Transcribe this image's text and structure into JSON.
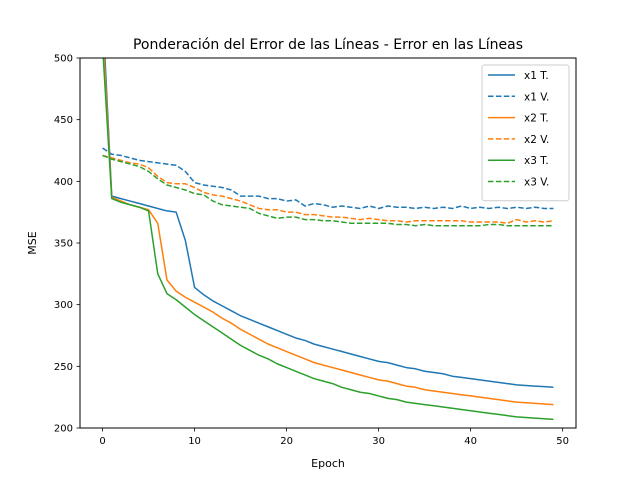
{
  "chart_data": {
    "type": "line",
    "title": "Ponderación del Error de las Líneas - Error en las Líneas",
    "xlabel": "Epoch",
    "ylabel": "MSE",
    "xlim": [
      -2.45,
      51.45
    ],
    "ylim": [
      200,
      500
    ],
    "xticks": [
      0,
      10,
      20,
      30,
      40,
      50
    ],
    "yticks": [
      200,
      250,
      300,
      350,
      400,
      450,
      500
    ],
    "grid": false,
    "legend_position": "top-right",
    "series": [
      {
        "name": "x1 T.",
        "color": "#1f77b4",
        "dash": "solid",
        "x": [
          0,
          1,
          2,
          3,
          4,
          5,
          6,
          7,
          8,
          9,
          10,
          11,
          12,
          13,
          14,
          15,
          16,
          17,
          18,
          19,
          20,
          21,
          22,
          23,
          24,
          25,
          26,
          27,
          28,
          29,
          30,
          31,
          32,
          33,
          34,
          35,
          36,
          37,
          38,
          39,
          40,
          41,
          42,
          43,
          44,
          45,
          46,
          47,
          48,
          49
        ],
        "y": [
          540,
          388,
          386,
          384,
          382,
          380,
          378,
          376,
          375,
          352,
          314,
          308,
          303,
          299,
          295,
          291,
          288,
          285,
          282,
          279,
          276,
          273,
          271,
          268,
          266,
          264,
          262,
          260,
          258,
          256,
          254,
          253,
          251,
          249,
          248,
          246,
          245,
          244,
          242,
          241,
          240,
          239,
          238,
          237,
          236,
          235,
          234.5,
          234,
          233.5,
          233
        ]
      },
      {
        "name": "x1 V.",
        "color": "#1f77b4",
        "dash": "dashed",
        "x": [
          0,
          1,
          2,
          3,
          4,
          5,
          6,
          7,
          8,
          9,
          10,
          11,
          12,
          13,
          14,
          15,
          16,
          17,
          18,
          19,
          20,
          21,
          22,
          23,
          24,
          25,
          26,
          27,
          28,
          29,
          30,
          31,
          32,
          33,
          34,
          35,
          36,
          37,
          38,
          39,
          40,
          41,
          42,
          43,
          44,
          45,
          46,
          47,
          48,
          49
        ],
        "y": [
          427,
          422,
          421,
          419,
          417,
          416,
          415,
          414,
          413,
          408,
          399,
          397,
          396,
          395,
          393,
          388,
          388,
          388,
          386,
          386,
          384,
          385,
          380,
          382,
          381,
          379,
          380,
          379,
          378,
          380,
          378,
          380,
          379,
          379,
          378,
          379,
          378,
          379,
          378,
          380,
          378,
          379,
          378,
          379,
          378,
          379,
          378,
          379,
          378,
          378
        ]
      },
      {
        "name": "x2 T.",
        "color": "#ff7f0e",
        "dash": "solid",
        "x": [
          0,
          1,
          2,
          3,
          4,
          5,
          6,
          7,
          8,
          9,
          10,
          11,
          12,
          13,
          14,
          15,
          16,
          17,
          18,
          19,
          20,
          21,
          22,
          23,
          24,
          25,
          26,
          27,
          28,
          29,
          30,
          31,
          32,
          33,
          34,
          35,
          36,
          37,
          38,
          39,
          40,
          41,
          42,
          43,
          44,
          45,
          46,
          47,
          48,
          49
        ],
        "y": [
          525,
          387,
          384,
          381,
          379,
          377,
          366,
          320,
          311,
          306,
          302,
          298,
          294,
          289,
          285,
          280,
          276,
          272,
          268,
          265,
          262,
          259,
          256,
          253,
          251,
          249,
          247,
          245,
          243,
          241,
          239,
          238,
          236,
          234,
          233,
          231,
          230,
          229,
          228,
          227,
          226,
          225,
          224,
          223,
          222,
          221,
          220.5,
          220,
          219.5,
          219
        ]
      },
      {
        "name": "x2 V.",
        "color": "#ff7f0e",
        "dash": "dashed",
        "x": [
          0,
          1,
          2,
          3,
          4,
          5,
          6,
          7,
          8,
          9,
          10,
          11,
          12,
          13,
          14,
          15,
          16,
          17,
          18,
          19,
          20,
          21,
          22,
          23,
          24,
          25,
          26,
          27,
          28,
          29,
          30,
          31,
          32,
          33,
          34,
          35,
          36,
          37,
          38,
          39,
          40,
          41,
          42,
          43,
          44,
          45,
          46,
          47,
          48,
          49
        ],
        "y": [
          421,
          419,
          417,
          415,
          414,
          411,
          404,
          399,
          398,
          398,
          395,
          391,
          389,
          388,
          386,
          384,
          381,
          378,
          377,
          377,
          375,
          375,
          373,
          373,
          372,
          371,
          371,
          370,
          369,
          370,
          369,
          368,
          368,
          367,
          368,
          368,
          368,
          368,
          368,
          368,
          367,
          367,
          367,
          367,
          366,
          369,
          367,
          368,
          367,
          368
        ]
      },
      {
        "name": "x3 T.",
        "color": "#2ca02c",
        "dash": "solid",
        "x": [
          0,
          1,
          2,
          3,
          4,
          5,
          6,
          7,
          8,
          9,
          10,
          11,
          12,
          13,
          14,
          15,
          16,
          17,
          18,
          19,
          20,
          21,
          22,
          23,
          24,
          25,
          26,
          27,
          28,
          29,
          30,
          31,
          32,
          33,
          34,
          35,
          36,
          37,
          38,
          39,
          40,
          41,
          42,
          43,
          44,
          45,
          46,
          47,
          48,
          49
        ],
        "y": [
          510,
          386,
          383,
          381,
          379,
          376,
          325,
          309,
          304,
          298,
          292,
          287,
          282,
          277,
          272,
          267,
          263,
          259,
          256,
          252,
          249,
          246,
          243,
          240,
          238,
          236,
          233,
          231,
          229,
          228,
          226,
          224,
          223,
          221,
          220,
          219,
          218,
          217,
          216,
          215,
          214,
          213,
          212,
          211,
          210,
          209,
          208.5,
          208,
          207.5,
          207
        ]
      },
      {
        "name": "x3 V.",
        "color": "#2ca02c",
        "dash": "dashed",
        "x": [
          0,
          1,
          2,
          3,
          4,
          5,
          6,
          7,
          8,
          9,
          10,
          11,
          12,
          13,
          14,
          15,
          16,
          17,
          18,
          19,
          20,
          21,
          22,
          23,
          24,
          25,
          26,
          27,
          28,
          29,
          30,
          31,
          32,
          33,
          34,
          35,
          36,
          37,
          38,
          39,
          40,
          41,
          42,
          43,
          44,
          45,
          46,
          47,
          48,
          49
        ],
        "y": [
          421,
          418,
          416,
          414,
          412,
          408,
          402,
          397,
          395,
          393,
          390,
          389,
          384,
          381,
          380,
          379,
          378,
          374,
          372,
          370,
          371,
          371,
          369,
          369,
          368,
          368,
          367,
          366,
          366,
          366,
          366,
          366,
          365,
          365,
          364,
          365,
          364,
          364,
          364,
          364,
          364,
          364,
          365,
          365,
          364,
          364,
          364,
          364,
          364,
          364
        ]
      }
    ]
  }
}
